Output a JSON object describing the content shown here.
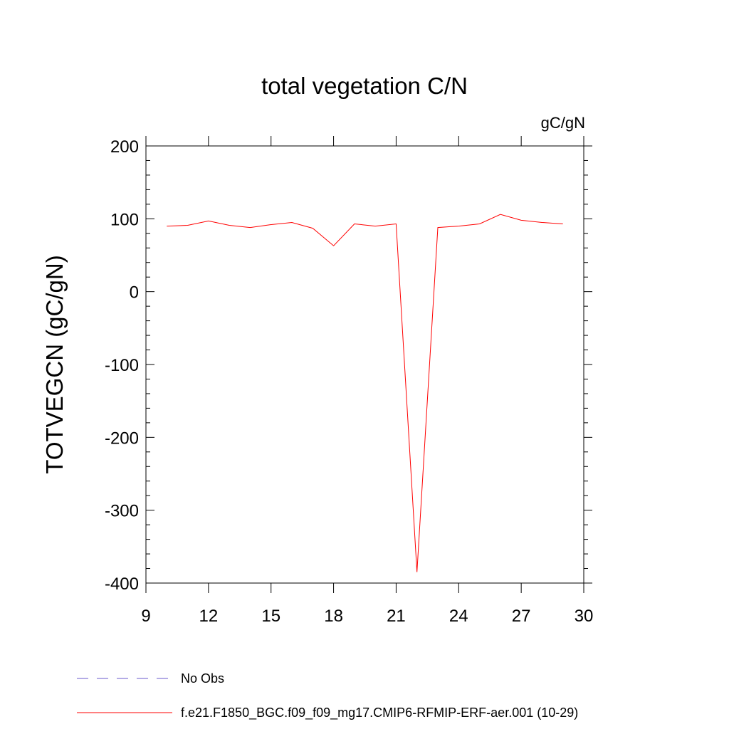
{
  "chart_data": {
    "type": "line",
    "title": "total vegetation C/N",
    "units": "gC/gN",
    "ylabel": "TOTVEGCN  (gC/gN)",
    "xlabel": "",
    "xlim": [
      9,
      30
    ],
    "ylim": [
      -400,
      200
    ],
    "xticks": [
      9,
      12,
      15,
      18,
      21,
      24,
      27,
      30
    ],
    "yticks": [
      200,
      100,
      0,
      -100,
      -200,
      -300,
      -400
    ],
    "grid": false,
    "series": [
      {
        "name": "f.e21.F1850_BGC.f09_f09_mg17.CMIP6-RFMIP-ERF-aer.001 (10-29)",
        "color": "#ff0000",
        "style": "solid",
        "x": [
          10,
          11,
          12,
          13,
          14,
          15,
          16,
          17,
          18,
          19,
          20,
          21,
          22,
          23,
          24,
          25,
          26,
          27,
          28,
          29
        ],
        "y": [
          90,
          91,
          97,
          91,
          88,
          92,
          95,
          87,
          63,
          93,
          90,
          93,
          -385,
          88,
          90,
          93,
          106,
          98,
          95,
          93
        ]
      }
    ],
    "legend": [
      {
        "label": "No Obs",
        "color": "#6a5acd",
        "style": "dashed"
      },
      {
        "label": "f.e21.F1850_BGC.f09_f09_mg17.CMIP6-RFMIP-ERF-aer.001 (10-29)",
        "color": "#ff0000",
        "style": "solid"
      }
    ]
  }
}
